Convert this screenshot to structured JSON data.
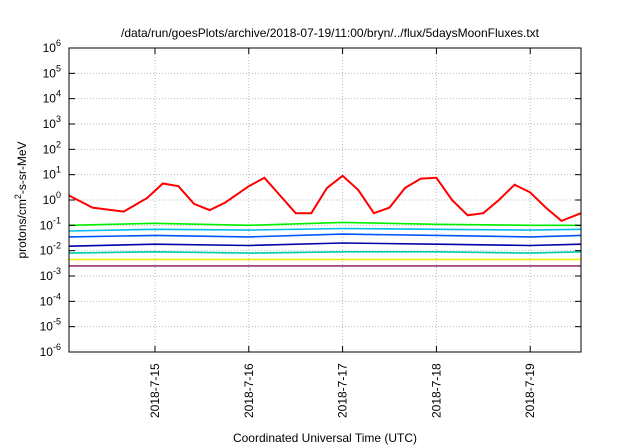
{
  "chart_data": {
    "type": "line",
    "title": "/data/run/goesPlots/archive/2018-07-19/11:00/bryn/../flux/5daysMoonFluxes.txt",
    "xlabel": "Coordinated Universal Time (UTC)",
    "ylabel": "protons/cm²-s-sr-MeV",
    "y_scale": "log",
    "ylim": [
      1e-06,
      1000000.0
    ],
    "xlim": [
      "2018-07-14 02:00",
      "2018-07-19 13:00"
    ],
    "y_ticks": [
      {
        "base": "10",
        "exp": "-6",
        "value": 1e-06
      },
      {
        "base": "10",
        "exp": "-5",
        "value": 1e-05
      },
      {
        "base": "10",
        "exp": "-4",
        "value": 0.0001
      },
      {
        "base": "10",
        "exp": "-3",
        "value": 0.001
      },
      {
        "base": "10",
        "exp": "-2",
        "value": 0.01
      },
      {
        "base": "10",
        "exp": "-1",
        "value": 0.1
      },
      {
        "base": "10",
        "exp": "0",
        "value": 1
      },
      {
        "base": "10",
        "exp": "1",
        "value": 10
      },
      {
        "base": "10",
        "exp": "2",
        "value": 100
      },
      {
        "base": "10",
        "exp": "3",
        "value": 1000
      },
      {
        "base": "10",
        "exp": "4",
        "value": 10000
      },
      {
        "base": "10",
        "exp": "5",
        "value": 100000
      },
      {
        "base": "10",
        "exp": "6",
        "value": 1000000
      }
    ],
    "x_ticks": [
      "2018-7-15",
      "2018-7-16",
      "2018-7-17",
      "2018-7-18",
      "2018-7-19"
    ],
    "grid": true,
    "series": [
      {
        "color": "#ff0000",
        "x": [
          "2018-07-14 02:00",
          "2018-07-14 08:00",
          "2018-07-14 16:00",
          "2018-07-14 22:00",
          "2018-07-15 02:00",
          "2018-07-15 06:00",
          "2018-07-15 10:00",
          "2018-07-15 14:00",
          "2018-07-15 18:00",
          "2018-07-16 00:00",
          "2018-07-16 04:00",
          "2018-07-16 08:00",
          "2018-07-16 12:00",
          "2018-07-16 16:00",
          "2018-07-16 20:00",
          "2018-07-17 00:00",
          "2018-07-17 04:00",
          "2018-07-17 08:00",
          "2018-07-17 12:00",
          "2018-07-17 16:00",
          "2018-07-17 20:00",
          "2018-07-18 00:00",
          "2018-07-18 04:00",
          "2018-07-18 08:00",
          "2018-07-18 12:00",
          "2018-07-18 16:00",
          "2018-07-18 20:00",
          "2018-07-19 00:00",
          "2018-07-19 04:00",
          "2018-07-19 08:00",
          "2018-07-19 13:00"
        ],
        "values": [
          1.5,
          0.5,
          0.35,
          1.2,
          4.5,
          3.5,
          0.7,
          0.4,
          0.8,
          3.5,
          7.5,
          1.5,
          0.3,
          0.3,
          3,
          9,
          2.5,
          0.3,
          0.5,
          3,
          7,
          7.5,
          1,
          0.25,
          0.3,
          1,
          4,
          2,
          0.5,
          0.15,
          0.3
        ]
      },
      {
        "color": "#00ee00",
        "x": [
          "2018-07-14 02:00",
          "2018-07-15 00:00",
          "2018-07-16 00:00",
          "2018-07-17 00:00",
          "2018-07-18 00:00",
          "2018-07-19 00:00",
          "2018-07-19 13:00"
        ],
        "values": [
          0.1,
          0.12,
          0.1,
          0.13,
          0.11,
          0.1,
          0.1
        ]
      },
      {
        "color": "#00bbee",
        "x": [
          "2018-07-14 02:00",
          "2018-07-15 00:00",
          "2018-07-16 00:00",
          "2018-07-17 00:00",
          "2018-07-18 00:00",
          "2018-07-19 00:00",
          "2018-07-19 13:00"
        ],
        "values": [
          0.06,
          0.07,
          0.065,
          0.075,
          0.07,
          0.065,
          0.07
        ]
      },
      {
        "color": "#0055ff",
        "x": [
          "2018-07-14 02:00",
          "2018-07-15 00:00",
          "2018-07-16 00:00",
          "2018-07-17 00:00",
          "2018-07-18 00:00",
          "2018-07-19 00:00",
          "2018-07-19 13:00"
        ],
        "values": [
          0.035,
          0.04,
          0.035,
          0.045,
          0.04,
          0.035,
          0.04
        ]
      },
      {
        "color": "#0000aa",
        "x": [
          "2018-07-14 02:00",
          "2018-07-15 00:00",
          "2018-07-16 00:00",
          "2018-07-17 00:00",
          "2018-07-18 00:00",
          "2018-07-19 00:00",
          "2018-07-19 13:00"
        ],
        "values": [
          0.015,
          0.018,
          0.016,
          0.02,
          0.018,
          0.016,
          0.018
        ]
      },
      {
        "color": "#00ccaa",
        "x": [
          "2018-07-14 02:00",
          "2018-07-15 00:00",
          "2018-07-16 00:00",
          "2018-07-17 00:00",
          "2018-07-18 00:00",
          "2018-07-19 00:00",
          "2018-07-19 13:00"
        ],
        "values": [
          0.008,
          0.009,
          0.008,
          0.009,
          0.009,
          0.008,
          0.009
        ]
      },
      {
        "color": "#eeee00",
        "x": [
          "2018-07-14 02:00",
          "2018-07-15 00:00",
          "2018-07-16 00:00",
          "2018-07-17 00:00",
          "2018-07-18 00:00",
          "2018-07-19 00:00",
          "2018-07-19 13:00"
        ],
        "values": [
          0.0045,
          0.0045,
          0.0045,
          0.0045,
          0.0045,
          0.0045,
          0.0045
        ]
      },
      {
        "color": "#993377",
        "x": [
          "2018-07-14 02:00",
          "2018-07-15 00:00",
          "2018-07-16 00:00",
          "2018-07-17 00:00",
          "2018-07-18 00:00",
          "2018-07-19 00:00",
          "2018-07-19 13:00"
        ],
        "values": [
          0.0025,
          0.0025,
          0.0025,
          0.0025,
          0.0025,
          0.0025,
          0.0025
        ]
      }
    ]
  }
}
